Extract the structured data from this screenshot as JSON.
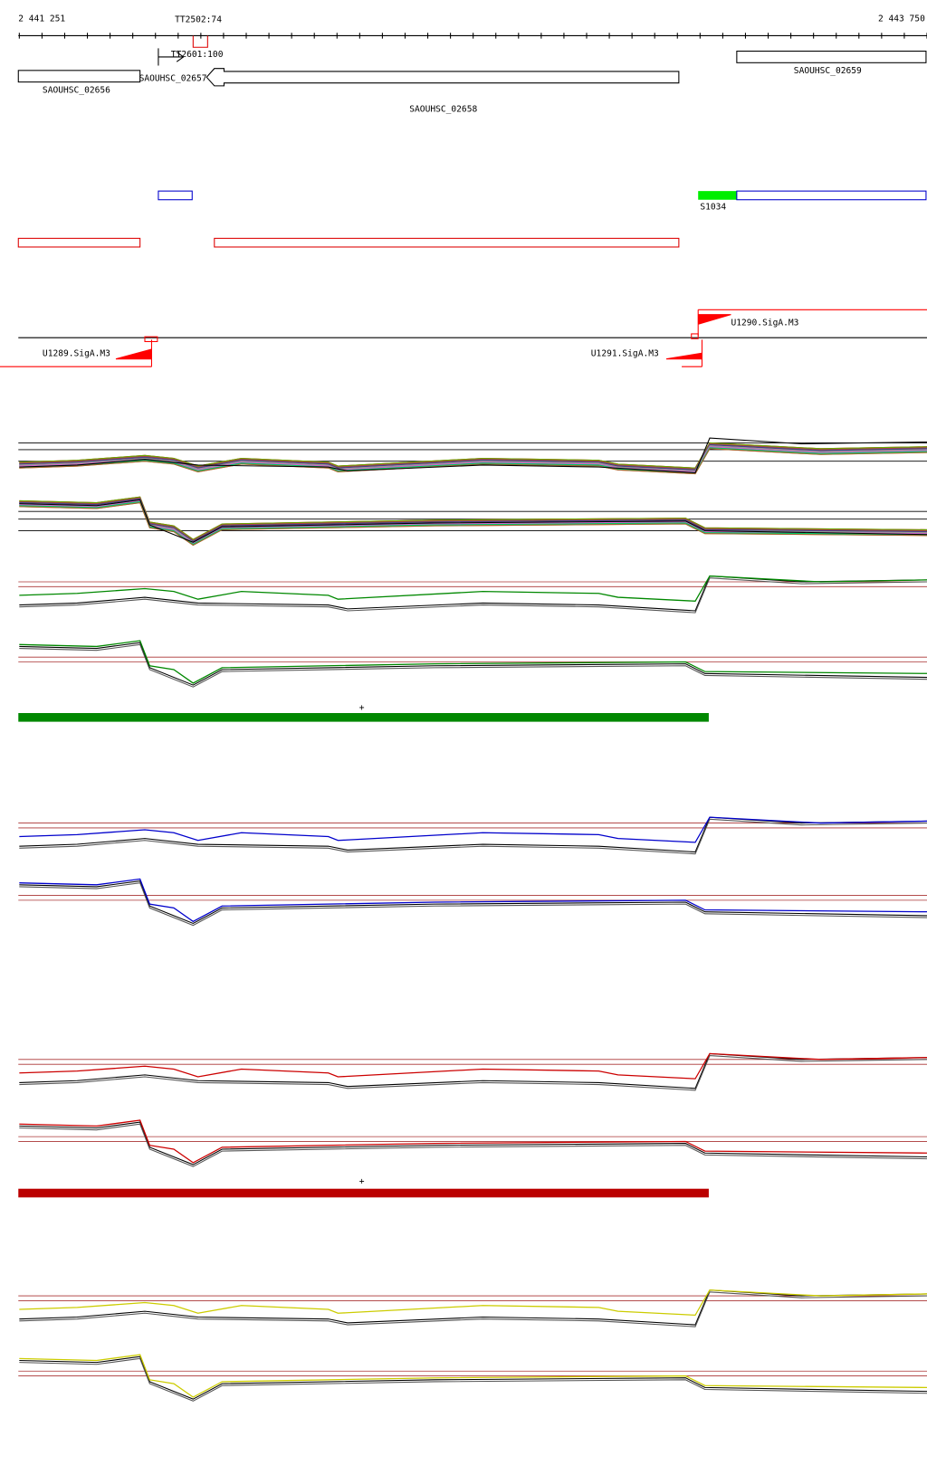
{
  "ruler": {
    "start": "2 441 251",
    "end": "2 443 750"
  },
  "terminators": [
    {
      "label": "TT2502:74"
    },
    {
      "label": "TT2601:100"
    }
  ],
  "genes": [
    {
      "label": "SAOUHSC_02656"
    },
    {
      "label": "SAOUHSC_02657"
    },
    {
      "label": "SAOUHSC_02658"
    },
    {
      "label": "SAOUHSC_02659"
    }
  ],
  "features": [
    {
      "label": "S1034"
    }
  ],
  "promoters": [
    {
      "label": "U1289.SigA.M3"
    },
    {
      "label": "U1290.SigA.M3"
    },
    {
      "label": "U1291.SigA.M3"
    }
  ],
  "strand_marks": [
    "+",
    "+"
  ]
}
